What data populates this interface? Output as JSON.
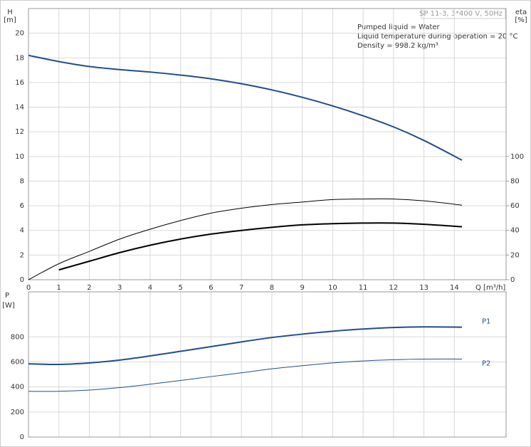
{
  "chart_data": [
    {
      "type": "line",
      "title": "SP 11-3, 3*400 V, 50Hz",
      "annotations": [
        "Pumped liquid = Water",
        "Liquid temperature during operation = 20 °C",
        "Density = 998.2 kg/m³"
      ],
      "ylabel_lines": [
        "H",
        "[m]"
      ],
      "y2label_lines": [
        "eta",
        "[%]"
      ],
      "xlabel": "Q [m³/h]",
      "x": [
        0,
        1,
        2,
        3,
        4,
        5,
        6,
        7,
        8,
        9,
        10,
        11,
        12,
        13,
        14.25
      ],
      "xlim": [
        0,
        15.7
      ],
      "xticks": [
        0,
        1,
        2,
        3,
        4,
        5,
        6,
        7,
        8,
        9,
        10,
        11,
        12,
        13,
        14
      ],
      "ylim": [
        0,
        22
      ],
      "yticks": [
        0,
        2,
        4,
        6,
        8,
        10,
        12,
        14,
        16,
        18,
        20
      ],
      "y2lim": [
        0,
        220
      ],
      "y2ticks": [
        0,
        20,
        40,
        60,
        80,
        100
      ],
      "grid": true,
      "series": [
        {
          "color": "#1f4e8c",
          "width": 2,
          "values": [
            18.2,
            17.7,
            17.3,
            17.05,
            16.85,
            16.6,
            16.3,
            15.9,
            15.4,
            14.8,
            14.1,
            13.3,
            12.4,
            11.3,
            9.7
          ]
        },
        {
          "color": "#000000",
          "width": 1,
          "axis": "y2",
          "values": [
            0,
            13,
            23,
            33,
            41,
            48,
            54,
            58,
            61,
            63,
            65,
            65.5,
            65.5,
            64,
            60.5
          ]
        },
        {
          "color": "#000000",
          "width": 2,
          "axis": "y2",
          "values": [
            null,
            8,
            15,
            22,
            28,
            33,
            37,
            40,
            42.5,
            44.5,
            45.5,
            46,
            46,
            45,
            43
          ]
        }
      ]
    },
    {
      "type": "line",
      "ylabel_lines": [
        "P",
        "[W]"
      ],
      "x": [
        0,
        1,
        2,
        3,
        4,
        5,
        6,
        7,
        8,
        9,
        10,
        11,
        12,
        13,
        14.25
      ],
      "xlim": [
        0,
        15.7
      ],
      "ylim": [
        0,
        1160
      ],
      "yticks": [
        0,
        200,
        400,
        600,
        800
      ],
      "grid": true,
      "series": [
        {
          "name": "P1",
          "color": "#1f4e8c",
          "width": 2,
          "values": [
            585,
            580,
            592,
            615,
            648,
            685,
            722,
            760,
            795,
            822,
            845,
            863,
            875,
            880,
            878
          ]
        },
        {
          "name": "P2",
          "color": "#1f4e8c",
          "width": 1,
          "values": [
            365,
            365,
            375,
            395,
            422,
            452,
            483,
            513,
            545,
            570,
            592,
            608,
            618,
            623,
            623
          ]
        }
      ]
    }
  ]
}
